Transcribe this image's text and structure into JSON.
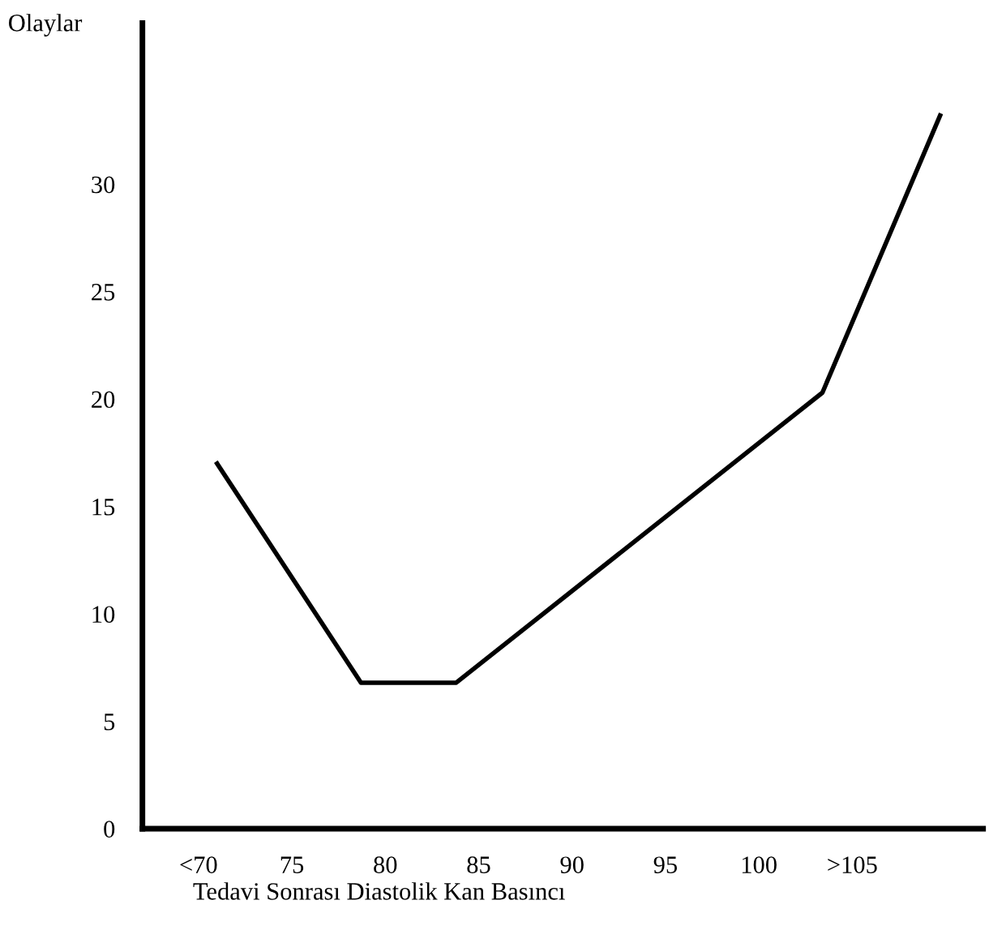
{
  "chart_data": {
    "type": "line",
    "xlabel": "Tedavi Sonrası Diastolik Kan Basıncı",
    "ylabel": "Olaylar",
    "x": [
      71,
      78.7,
      83.8,
      103.4,
      109.7
    ],
    "series": [
      {
        "color": "#000000",
        "values": [
          17,
          6.8,
          6.8,
          20.3,
          33.2
        ]
      }
    ],
    "xlim": [
      67,
      112
    ],
    "xticks": [
      {
        "value": 70,
        "label": "<70"
      },
      75,
      80,
      85,
      90,
      95,
      100,
      {
        "value": 105,
        "label": ">105"
      }
    ],
    "ylim": [
      0,
      37.5
    ],
    "yticks": [
      0,
      5,
      10,
      15,
      20,
      25,
      30
    ],
    "grid": false,
    "legend": false,
    "marker": "none",
    "line_style": "solid"
  }
}
